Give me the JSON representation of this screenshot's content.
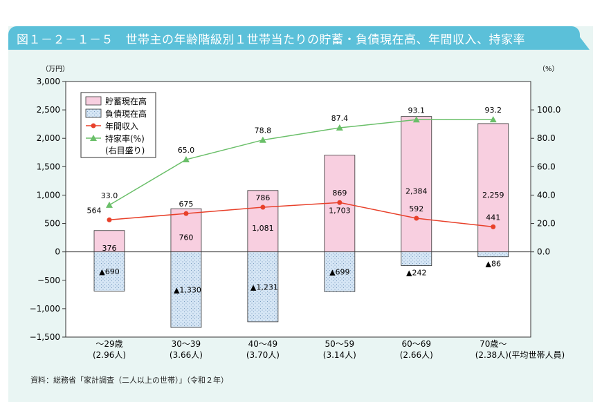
{
  "title": "図１－２－１－５　世帯主の年齢階級別１世帯当たりの貯蓄・負債現在高、年間収入、持家率",
  "source": "資料：総務省「家計調査（二人以上の世帯）」（令和２年）",
  "colors": {
    "title_bar": "#5bc0d9",
    "background": "#e9f5f3",
    "savings": "#f8cfe0",
    "debt": "#d6e6f5",
    "income": "#e8402a",
    "homeownership": "#6abf69"
  },
  "chart_data": {
    "type": "bar",
    "left_unit": "（万円）",
    "right_unit": "（%）",
    "ylim": [
      -1500,
      3000
    ],
    "y_ticks": [
      3000,
      2500,
      2000,
      1500,
      1000,
      500,
      0,
      -500,
      -1000,
      -1500
    ],
    "y_tick_labels": [
      "3,000",
      "2,500",
      "2,000",
      "1,500",
      "1,000",
      "500",
      "0",
      "−500",
      "−1,000",
      "−1,500"
    ],
    "y2lim": [
      -60,
      120
    ],
    "y2_ticks": [
      100,
      80,
      60,
      40,
      20,
      0
    ],
    "y2_tick_labels": [
      "100.0",
      "80.0",
      "60.0",
      "40.0",
      "20.0",
      "0.0"
    ],
    "categories": [
      [
        "～29歳",
        "(2.96人)"
      ],
      [
        "30～39",
        "(3.66人)"
      ],
      [
        "40～49",
        "(3.70人)"
      ],
      [
        "50～59",
        "(3.14人)"
      ],
      [
        "60～69",
        "(2.66人)"
      ],
      [
        "70歳～",
        "(2.38人)(平均世帯人員)"
      ]
    ],
    "series": [
      {
        "name": "貯蓄現在高",
        "type": "bar",
        "values": [
          376,
          760,
          1081,
          1703,
          2384,
          2259
        ],
        "labels": [
          "376",
          "760",
          "1,081",
          "1,703",
          "2,384",
          "2,259"
        ]
      },
      {
        "name": "負債現在高",
        "type": "bar",
        "values": [
          -690,
          -1330,
          -1231,
          -699,
          -242,
          -86
        ],
        "labels": [
          "▲690",
          "▲1,330",
          "▲1,231",
          "▲699",
          "▲242",
          "▲86"
        ]
      },
      {
        "name": "年間収入",
        "type": "line",
        "values": [
          564,
          675,
          786,
          869,
          592,
          441
        ],
        "labels": [
          "564",
          "675",
          "786",
          "869",
          "592",
          "441"
        ]
      },
      {
        "name": "持家率(%)",
        "name2": "(右目盛り)",
        "type": "line",
        "axis": "right",
        "values": [
          33.0,
          65.0,
          78.8,
          87.4,
          93.1,
          93.2
        ],
        "labels": [
          "33.0",
          "65.0",
          "78.8",
          "87.4",
          "93.1",
          "93.2"
        ]
      }
    ],
    "grid": false,
    "legend_placement": "top-left"
  }
}
